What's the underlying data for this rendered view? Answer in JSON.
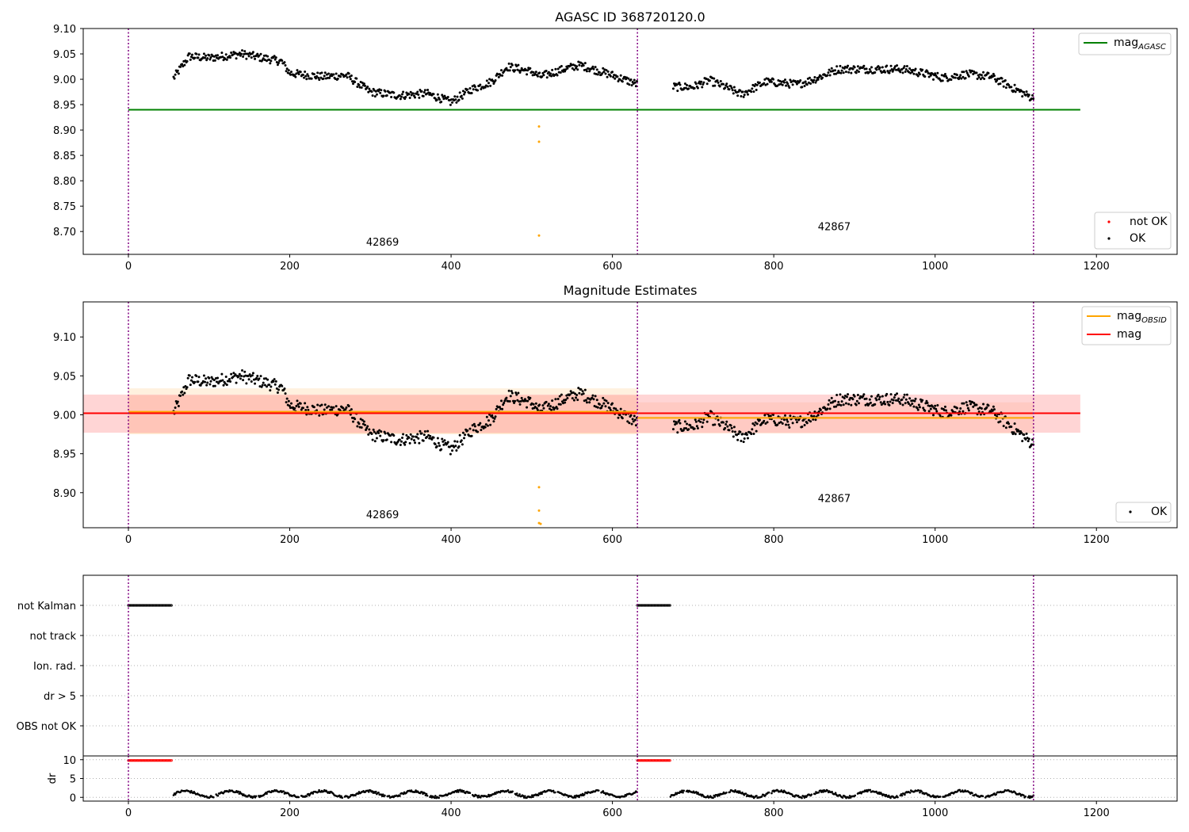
{
  "chart_data": [
    {
      "type": "scatter",
      "title": "AGASC ID 368720120.0",
      "xlim": [
        -56,
        1300
      ],
      "ylim": [
        8.655,
        9.1
      ],
      "x_ticks": [
        0,
        200,
        400,
        600,
        800,
        1000,
        1200
      ],
      "y_ticks": [
        8.7,
        8.75,
        8.8,
        8.85,
        8.9,
        8.95,
        9.0,
        9.05,
        9.1
      ],
      "obs_boundaries": [
        0,
        631,
        1122
      ],
      "obsids": [
        {
          "label": "42869",
          "x": 315,
          "y": 8.672
        },
        {
          "label": "42867",
          "x": 875,
          "y": 8.703
        }
      ],
      "lines": [
        {
          "name": "mag_AGASC",
          "y": 8.94,
          "x0": 0,
          "x1": 1180,
          "color": "#008000"
        }
      ],
      "outliers": [
        {
          "x": 509,
          "y": 8.907
        },
        {
          "x": 509,
          "y": 8.877
        },
        {
          "x": 509,
          "y": 8.692
        }
      ],
      "legend_lines": [
        {
          "text": "mag",
          "sub": "AGASC",
          "color": "#008000"
        }
      ],
      "legend_points": [
        {
          "text": "not OK",
          "color": "#ff0000"
        },
        {
          "text": "OK",
          "color": "#000000"
        }
      ]
    },
    {
      "type": "scatter",
      "title": "Magnitude Estimates",
      "xlim": [
        -56,
        1300
      ],
      "ylim": [
        8.855,
        9.145
      ],
      "x_ticks": [
        0,
        200,
        400,
        600,
        800,
        1000,
        1200
      ],
      "y_ticks": [
        8.9,
        8.95,
        9.0,
        9.05,
        9.1
      ],
      "obs_boundaries": [
        0,
        631,
        1122
      ],
      "obsids": [
        {
          "label": "42869",
          "x": 315,
          "y": 8.867
        },
        {
          "label": "42867",
          "x": 875,
          "y": 8.888
        }
      ],
      "bands": [
        {
          "x0": 0,
          "x1": 631,
          "y0": 8.975,
          "y1": 9.034,
          "color": "#ffe6c4"
        },
        {
          "x0": 0,
          "x1": 631,
          "y0": 8.976,
          "y1": 9.025,
          "color": "#ffc9a3"
        },
        {
          "x0": 631,
          "x1": 1122,
          "y0": 8.976,
          "y1": 9.016,
          "color": "#ffd3b8"
        },
        {
          "x0": -56,
          "x1": 1180,
          "y0": 8.977,
          "y1": 9.026,
          "color": "#ffb3b3"
        }
      ],
      "lines": [
        {
          "name": "mag_OBSID",
          "y": 9.004,
          "x0": 0,
          "x1": 631,
          "color": "#ffa500"
        },
        {
          "name": "mag_OBSID",
          "y": 8.996,
          "x0": 631,
          "x1": 1122,
          "color": "#ffa500"
        },
        {
          "name": "mag",
          "y": 9.002,
          "x0": -56,
          "x1": 1180,
          "color": "#ff0000"
        }
      ],
      "outliers": [
        {
          "x": 509,
          "y": 8.907
        },
        {
          "x": 509,
          "y": 8.877
        },
        {
          "x": 509,
          "y": 8.861
        },
        {
          "x": 511,
          "y": 8.86
        }
      ],
      "legend_lines": [
        {
          "text": "mag",
          "sub": "OBSID",
          "color": "#ffa500"
        },
        {
          "text": "mag",
          "sub": "",
          "color": "#ff0000"
        }
      ],
      "legend_points": [
        {
          "text": "OK",
          "color": "#000000"
        }
      ]
    },
    {
      "type": "scatter",
      "title": "",
      "xlim": [
        -56,
        1300
      ],
      "x_ticks": [
        0,
        200,
        400,
        600,
        800,
        1000,
        1200
      ],
      "obs_boundaries": [
        0,
        631,
        1122
      ],
      "flag_rows": [
        "not Kalman",
        "not track",
        "Ion. rad.",
        "dr > 5",
        "OBS not OK"
      ],
      "flag_segments": [
        {
          "row": "not Kalman",
          "x0": 0,
          "x1": 54
        },
        {
          "row": "not Kalman",
          "x0": 631,
          "x1": 672
        }
      ]
    },
    {
      "type": "scatter",
      "title": "",
      "ylabel": "dr",
      "xlim": [
        -56,
        1300
      ],
      "ylim": [
        -1,
        11
      ],
      "x_ticks": [
        0,
        200,
        400,
        600,
        800,
        1000,
        1200
      ],
      "y_ticks": [
        0,
        5,
        10
      ],
      "obs_boundaries": [
        0,
        631,
        1122
      ],
      "dr_high": [
        {
          "x0": 0,
          "x1": 54,
          "y": 9.8
        },
        {
          "x0": 631,
          "x1": 672,
          "y": 9.8
        }
      ]
    }
  ]
}
